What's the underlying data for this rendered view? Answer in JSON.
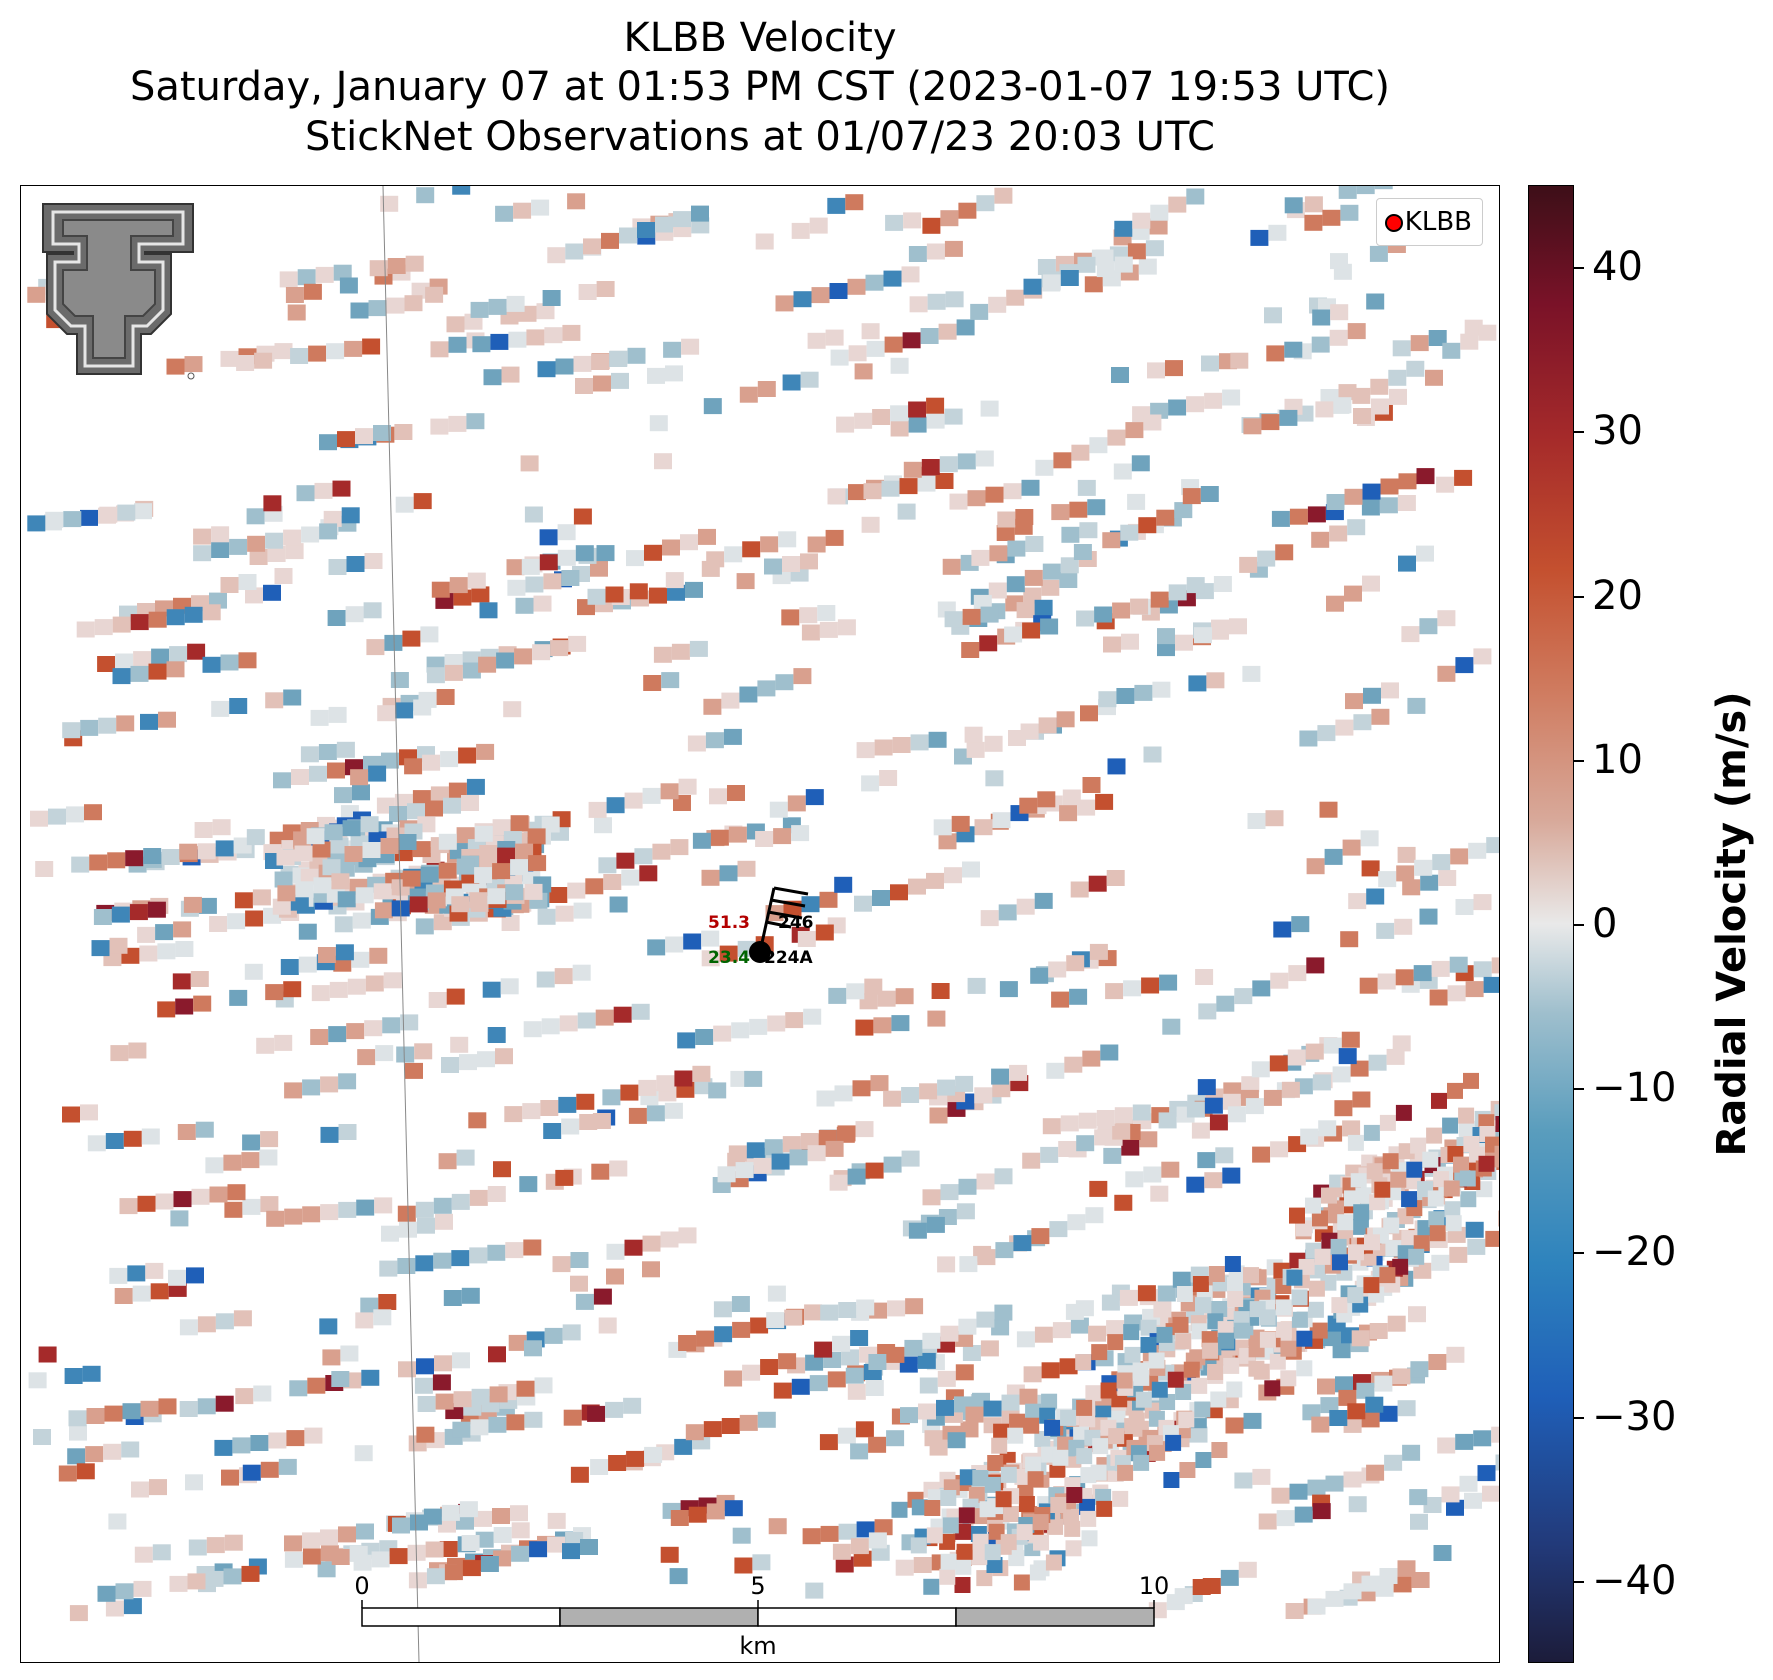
{
  "title": {
    "line1": "KLBB Velocity",
    "line2": "Saturday, January 07 at 01:53 PM CST (2023-01-07 19:53 UTC)",
    "line3": "StickNet Observations at 01/07/23 20:03 UTC"
  },
  "legend": {
    "label": "KLBB",
    "marker_color": "#ff0000"
  },
  "colorbar": {
    "label": "Radial Velocity (m/s)",
    "min": -45,
    "max": 45,
    "ticks": [
      "40",
      "30",
      "20",
      "10",
      "0",
      "−10",
      "−20",
      "−30",
      "−40"
    ],
    "tick_values": [
      40,
      30,
      20,
      10,
      0,
      -10,
      -20,
      -30,
      -40
    ]
  },
  "scalebar": {
    "labels": [
      "0",
      "5",
      "10"
    ],
    "unit": "km"
  },
  "station": {
    "id": "224A",
    "temperature": "51.3",
    "dewpoint": "23.4",
    "pressure": "246",
    "temperature_color": "#b30000",
    "dewpoint_color": "#006400"
  },
  "logo": {
    "name": "texas-tech-double-t-logo"
  }
}
